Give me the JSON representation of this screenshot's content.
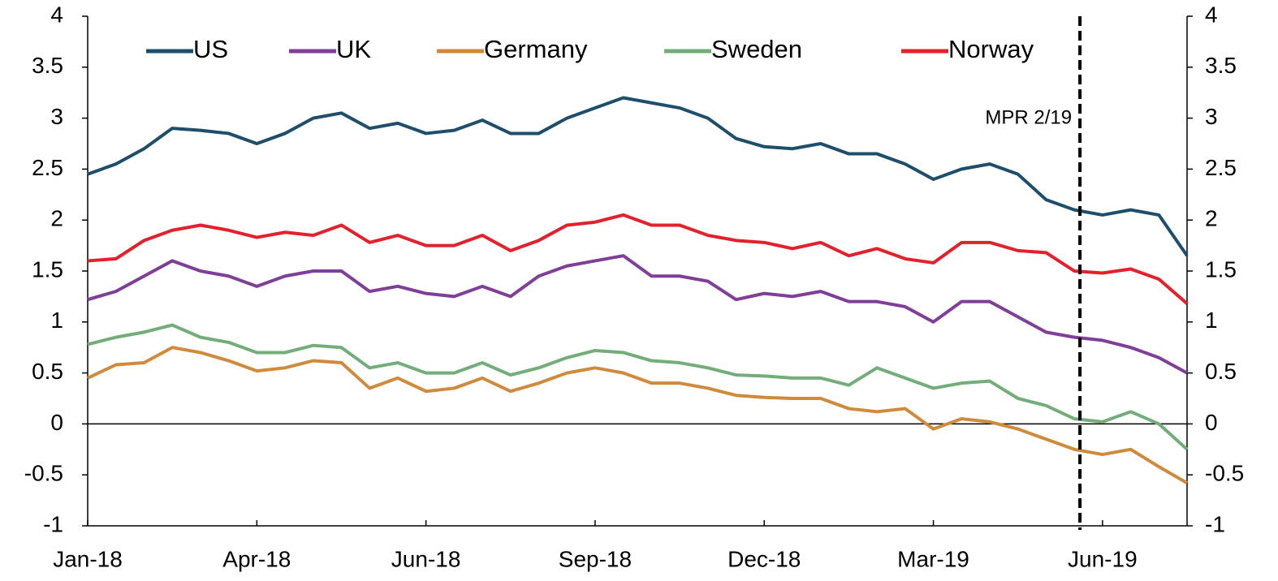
{
  "chart_data": {
    "type": "line",
    "categories": [
      "Jan-18",
      null,
      null,
      null,
      null,
      null,
      "Apr-18",
      null,
      null,
      null,
      null,
      null,
      "Jun-18",
      null,
      null,
      null,
      null,
      null,
      "Sep-18",
      null,
      null,
      null,
      null,
      null,
      "Dec-18",
      null,
      null,
      null,
      null,
      null,
      "Mar-19",
      null,
      null,
      null,
      null,
      null,
      "Jun-19",
      null,
      null,
      null
    ],
    "series": [
      {
        "name": "US",
        "color": "#1f4e6b",
        "values": [
          2.45,
          2.55,
          2.7,
          2.9,
          2.88,
          2.85,
          2.75,
          2.85,
          3.0,
          3.05,
          2.9,
          2.95,
          2.85,
          2.88,
          2.98,
          2.85,
          2.85,
          3.0,
          3.1,
          3.2,
          3.15,
          3.1,
          3.0,
          2.8,
          2.72,
          2.7,
          2.75,
          2.65,
          2.65,
          2.55,
          2.4,
          2.5,
          2.55,
          2.45,
          2.2,
          2.1,
          2.05,
          2.1,
          2.05,
          1.65
        ]
      },
      {
        "name": "UK",
        "color": "#7f3f98",
        "values": [
          1.22,
          1.3,
          1.45,
          1.6,
          1.5,
          1.45,
          1.35,
          1.45,
          1.5,
          1.5,
          1.3,
          1.35,
          1.28,
          1.25,
          1.35,
          1.25,
          1.45,
          1.55,
          1.6,
          1.65,
          1.45,
          1.45,
          1.4,
          1.22,
          1.28,
          1.25,
          1.3,
          1.2,
          1.2,
          1.15,
          1.0,
          1.2,
          1.2,
          1.05,
          0.9,
          0.85,
          0.82,
          0.75,
          0.65,
          0.5
        ]
      },
      {
        "name": "Germany",
        "color": "#d08a3c",
        "values": [
          0.45,
          0.58,
          0.6,
          0.75,
          0.7,
          0.62,
          0.52,
          0.55,
          0.62,
          0.6,
          0.35,
          0.45,
          0.32,
          0.35,
          0.45,
          0.32,
          0.4,
          0.5,
          0.55,
          0.5,
          0.4,
          0.4,
          0.35,
          0.28,
          0.26,
          0.25,
          0.25,
          0.15,
          0.12,
          0.15,
          -0.05,
          0.05,
          0.02,
          -0.05,
          -0.15,
          -0.25,
          -0.3,
          -0.25,
          -0.42,
          -0.58
        ]
      },
      {
        "name": "Sweden",
        "color": "#72ad7a",
        "values": [
          0.78,
          0.85,
          0.9,
          0.97,
          0.85,
          0.8,
          0.7,
          0.7,
          0.77,
          0.75,
          0.55,
          0.6,
          0.5,
          0.5,
          0.6,
          0.48,
          0.55,
          0.65,
          0.72,
          0.7,
          0.62,
          0.6,
          0.55,
          0.48,
          0.47,
          0.45,
          0.45,
          0.38,
          0.55,
          0.45,
          0.35,
          0.4,
          0.42,
          0.25,
          0.18,
          0.05,
          0.02,
          0.12,
          0.0,
          -0.25
        ]
      },
      {
        "name": "Norway",
        "color": "#e3202b",
        "values": [
          1.6,
          1.62,
          1.8,
          1.9,
          1.95,
          1.9,
          1.83,
          1.88,
          1.85,
          1.95,
          1.78,
          1.85,
          1.75,
          1.75,
          1.85,
          1.7,
          1.8,
          1.95,
          1.98,
          2.05,
          1.95,
          1.95,
          1.85,
          1.8,
          1.78,
          1.72,
          1.78,
          1.65,
          1.72,
          1.62,
          1.58,
          1.78,
          1.78,
          1.7,
          1.68,
          1.5,
          1.48,
          1.52,
          1.42,
          1.18
        ]
      }
    ],
    "ylim": [
      -1,
      4
    ],
    "yticks": [
      -1,
      -0.5,
      0,
      0.5,
      1,
      1.5,
      2,
      2.5,
      3,
      3.5,
      4
    ],
    "y2lim": [
      -1,
      4
    ],
    "y2ticks": [
      -1,
      -0.5,
      0,
      0.5,
      1,
      1.5,
      2,
      2.5,
      3,
      3.5,
      4
    ],
    "grid": false,
    "legend": "top",
    "annotations": [
      {
        "text": "MPR 2/19",
        "x": 35.2
      }
    ]
  }
}
